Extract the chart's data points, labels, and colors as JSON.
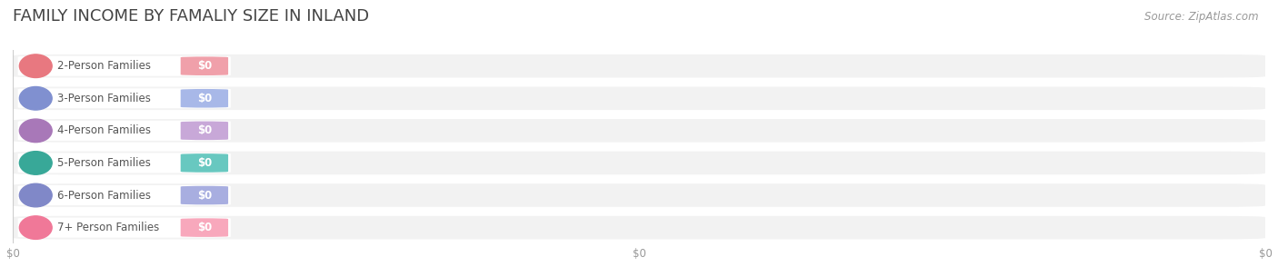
{
  "title": "FAMILY INCOME BY FAMALIY SIZE IN INLAND",
  "source": "Source: ZipAtlas.com",
  "categories": [
    "2-Person Families",
    "3-Person Families",
    "4-Person Families",
    "5-Person Families",
    "6-Person Families",
    "7+ Person Families"
  ],
  "values": [
    0,
    0,
    0,
    0,
    0,
    0
  ],
  "bar_colors": [
    "#f0a0aa",
    "#a8b8e8",
    "#c8a8d8",
    "#68c8c0",
    "#a8aee0",
    "#f8a8bc"
  ],
  "dot_colors": [
    "#e87880",
    "#8090d0",
    "#a878b8",
    "#38a898",
    "#8088c8",
    "#f07898"
  ],
  "bg_color": "#ffffff",
  "bar_bg_color": "#f2f2f2",
  "xlim": [
    0,
    1
  ],
  "xlabel_ticks": [
    "$0",
    "$0",
    "$0"
  ],
  "xtick_positions": [
    0.0,
    0.5,
    1.0
  ],
  "title_fontsize": 13,
  "label_fontsize": 8.5,
  "value_fontsize": 8.5,
  "source_fontsize": 8.5,
  "bar_value_label_color": "#ffffff"
}
